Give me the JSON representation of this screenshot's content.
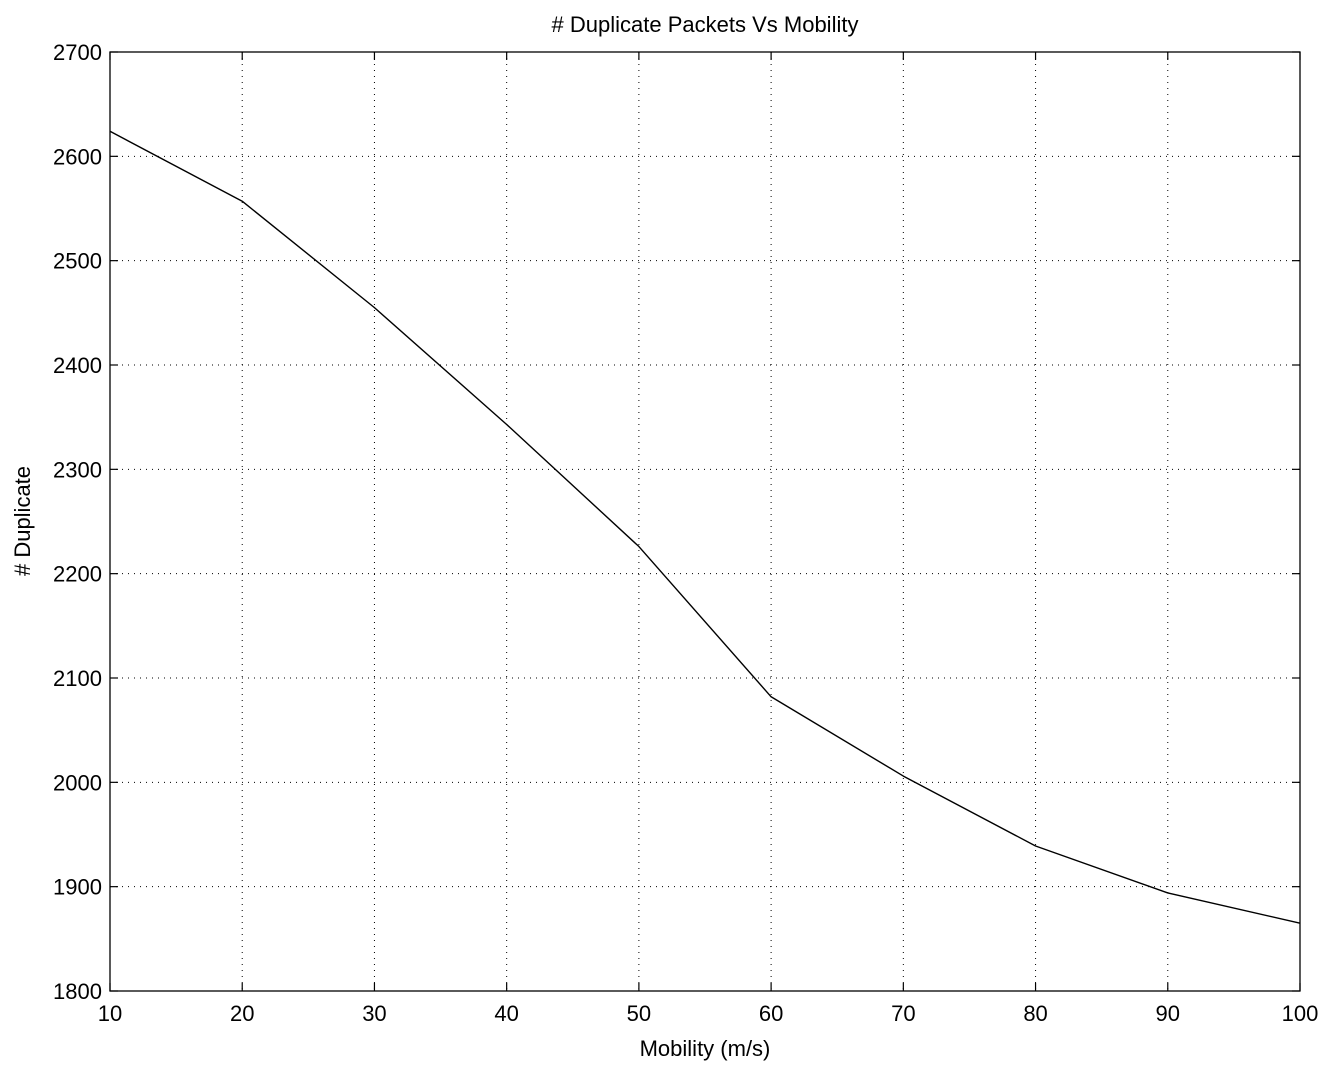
{
  "chart_data": {
    "type": "line",
    "title": "# Duplicate Packets Vs Mobility",
    "xlabel": "Mobility (m/s)",
    "ylabel": "# Duplicate",
    "xlim": [
      10,
      100
    ],
    "ylim": [
      1800,
      2700
    ],
    "xticks": [
      "10",
      "20",
      "30",
      "40",
      "50",
      "60",
      "70",
      "80",
      "90",
      "100"
    ],
    "yticks": [
      "1800",
      "1900",
      "2000",
      "2100",
      "2200",
      "2300",
      "2400",
      "2500",
      "2600",
      "2700"
    ],
    "grid": true,
    "series": [
      {
        "color": "#000000",
        "x": [
          10,
          20,
          30,
          40,
          50,
          60,
          70,
          80,
          90,
          100
        ],
        "y": [
          2624,
          2557,
          2455,
          2343,
          2226,
          2082,
          2006,
          1939,
          1894,
          1865
        ]
      }
    ]
  }
}
